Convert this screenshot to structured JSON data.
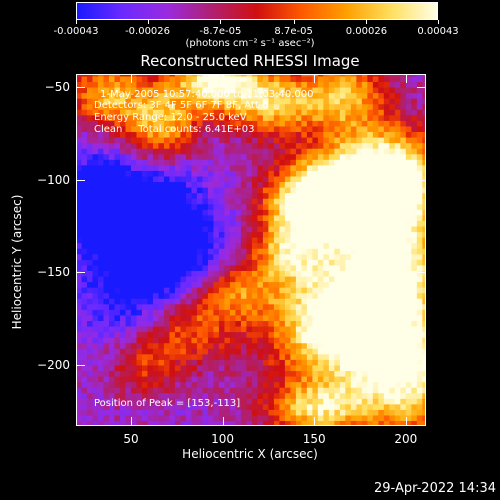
{
  "colorbar": {
    "ticks": [
      "-0.00043",
      "-0.00026",
      "-8.7e-05",
      "8.7e-05",
      "0.00026",
      "0.00043"
    ],
    "tick_values": [
      -0.00043,
      -0.00026,
      -8.7e-05,
      8.7e-05,
      0.00026,
      0.00043
    ],
    "range": [
      -0.00043,
      0.00043
    ],
    "colors": [
      "#1a1aff",
      "#6a2aff",
      "#9a2ae0",
      "#b02070",
      "#d01010",
      "#ff5a00",
      "#ffa000",
      "#ffe060",
      "#ffffe8"
    ]
  },
  "chart_data": {
    "type": "heatmap",
    "title": "Reconstructed RHESSI Image",
    "colorbar_unit": "(photons cm⁻² s⁻¹ asec⁻²)",
    "xlabel": "Heliocentric X (arcsec)",
    "ylabel": "Heliocentric Y (arcsec)",
    "xlim": [
      20,
      211
    ],
    "ylim": [
      -233,
      -43
    ],
    "xticks": [
      50,
      100,
      150,
      200
    ],
    "yticks": [
      -50,
      -100,
      -150,
      -200
    ],
    "xtick_labels": [
      "50",
      "100",
      "150",
      "200"
    ],
    "ytick_labels": [
      "−50",
      "−100",
      "−150",
      "−200"
    ],
    "annotations": {
      "time": "1-May-2005 10:57:40.000 to 11:03:40.000",
      "detectors": "Detectors: 3F 4F 5F 6F 7F 8F, Att 0",
      "energy": "Energy Range: 12.0 - 25.0 keV",
      "method": "Clean     Total counts: 6.41E+03",
      "peak": "Position of Peak = [153,-113]"
    },
    "peak": [
      153,
      -113
    ]
  },
  "footer": {
    "date": "29-Apr-2022 14:34"
  }
}
